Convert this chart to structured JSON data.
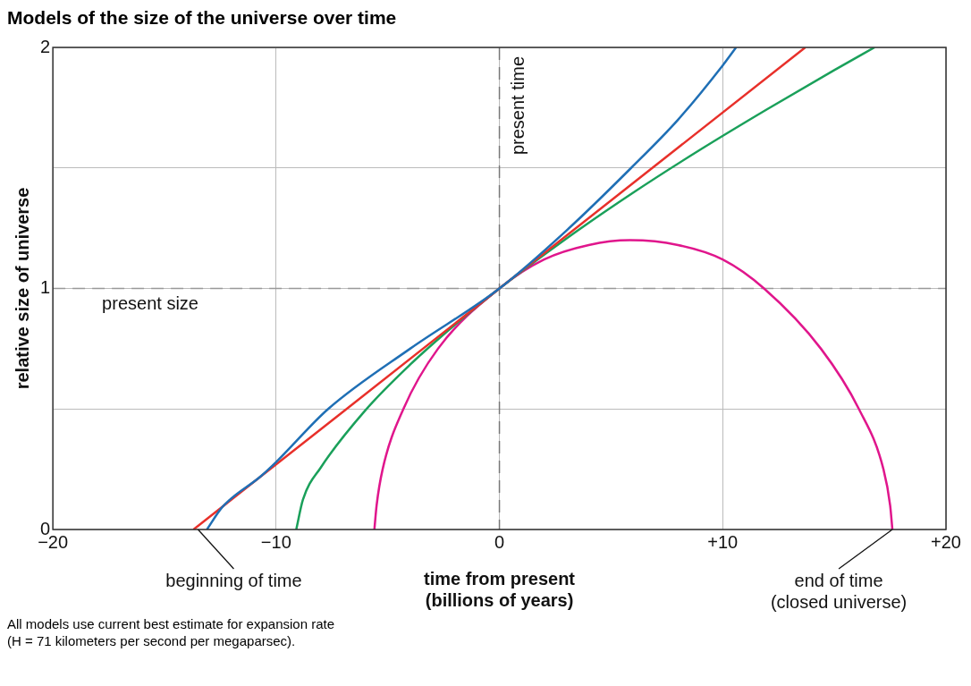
{
  "chart_data": {
    "type": "line",
    "title": "Models of the size of the universe over time",
    "xlabel": "time from present\n(billions of years)",
    "ylabel": "relative size of universe",
    "xlim": [
      -20,
      20
    ],
    "xticks": [
      {
        "value": -20,
        "label": "−20"
      },
      {
        "value": -10,
        "label": "−10"
      },
      0,
      {
        "value": 10,
        "label": "+10"
      },
      {
        "value": 20,
        "label": "+20"
      }
    ],
    "ylim": [
      0,
      2
    ],
    "yticks": [
      0,
      {
        "value": 0.5,
        "label": null
      },
      1,
      {
        "value": 1.5,
        "label": null
      },
      2
    ],
    "grid": true,
    "legend": false,
    "marker": "none",
    "line_style": "solid",
    "series": [
      {
        "color": "#1f6fb5",
        "x": [
          -13.1,
          -12.4,
          -10.7,
          -10,
          -7.67,
          -4,
          0,
          3,
          5.9,
          8,
          10,
          10.6
        ],
        "values": [
          0,
          0.094,
          0.22,
          0.28,
          0.5,
          0.75,
          1,
          1.24,
          1.5,
          1.7,
          1.925,
          2
        ]
      },
      {
        "color": "#e8302a",
        "x": [
          -13.7,
          0,
          13.7
        ],
        "values": [
          0,
          1,
          2
        ]
      },
      {
        "color": "#1aa05a",
        "x": [
          -9.1,
          -8.8,
          -8,
          -6,
          -4,
          -2,
          0,
          3,
          6,
          9,
          12,
          15,
          16.8
        ],
        "values": [
          0,
          0.124,
          0.257,
          0.495,
          0.684,
          0.849,
          1,
          1.207,
          1.398,
          1.576,
          1.744,
          1.906,
          2
        ]
      },
      {
        "color": "#e0168c",
        "x": [
          -5.6,
          -5.5,
          -5.23,
          -4.3,
          -2.75,
          0,
          2,
          4,
          5.85,
          8,
          10,
          11.85,
          14.4,
          16.1,
          17.2,
          17.5,
          17.6
        ],
        "values": [
          0,
          0.1,
          0.25,
          0.5,
          0.75,
          1,
          1.12,
          1.18,
          1.2,
          1.18,
          1.12,
          1,
          0.75,
          0.5,
          0.25,
          0.1,
          0
        ]
      }
    ],
    "ref_lines": [
      {
        "axis": "y",
        "value": 1,
        "label": "present size",
        "color": "#999999",
        "line_style": "dashed"
      },
      {
        "axis": "x",
        "value": 0,
        "label": "present time",
        "color": "#777777",
        "line_style": "dashed"
      }
    ],
    "annotations": [
      {
        "text": "beginning of time",
        "x": -13.5,
        "y": 0
      },
      {
        "text": "end of time\n(closed universe)",
        "x": 17.6,
        "y": 0
      },
      "All models use current best estimate for expansion rate",
      "(H = 71 kilometers per second per megaparsec)."
    ]
  }
}
